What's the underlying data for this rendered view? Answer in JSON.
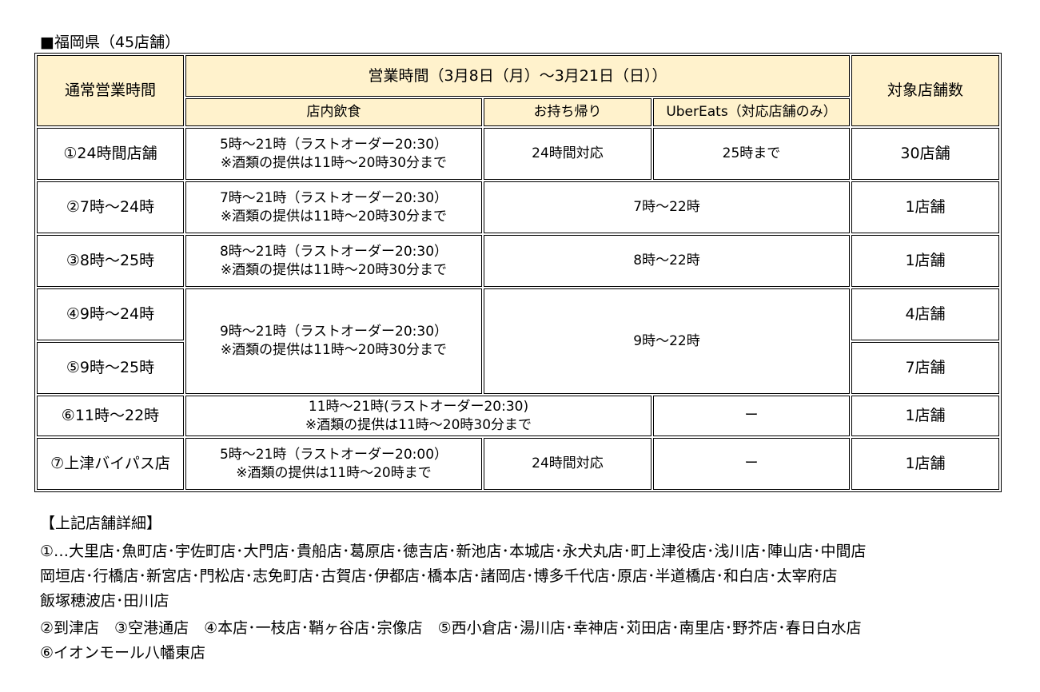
{
  "title": "■福岡県（45店舗）",
  "table": {
    "header": {
      "normal_hours": "通常営業時間",
      "period": "営業時間（3月8日（月）～3月21日（日））",
      "dine_in": "店内飲食",
      "takeout": "お持ち帰り",
      "ubereats": "UberEats（対応店舗のみ）",
      "store_count": "対象店舗数"
    },
    "rows": [
      {
        "normal": "①24時間店舗",
        "dine_in": [
          "5時～21時（ラストオーダー20:30）",
          "※酒類の提供は11時～20時30分まで"
        ],
        "takeout": "24時間対応",
        "ubereats": "25時まで",
        "count": "30店舗"
      },
      {
        "normal": "②7時～24時",
        "dine_in": [
          "7時～21時（ラストオーダー20:30）",
          "※酒類の提供は11時～20時30分まで"
        ],
        "takeout_ubereats": "7時～22時",
        "count": "1店舗"
      },
      {
        "normal": "③8時～25時",
        "dine_in": [
          "8時～21時（ラストオーダー20:30）",
          "※酒類の提供は11時～20時30分まで"
        ],
        "takeout_ubereats": "8時～22時",
        "count": "1店舗"
      },
      {
        "normal": "④9時～24時",
        "dine_in": [
          "9時～21時（ラストオーダー20:30）",
          "※酒類の提供は11時～20時30分まで"
        ],
        "takeout_ubereats": "9時～22時",
        "count": "4店舗"
      },
      {
        "normal": "⑤9時～25時",
        "count": "7店舗"
      },
      {
        "normal": "⑥11時～22時",
        "dine_in_takeout": [
          "11時～21時(ラストオーダー20:30)",
          "※酒類の提供は11時～20時30分まで"
        ],
        "ubereats": "ー",
        "count": "1店舗"
      },
      {
        "normal": "⑦上津バイパス店",
        "dine_in": [
          "5時～21時（ラストオーダー20:00）",
          "※酒類の提供は11時～20時まで"
        ],
        "takeout": "24時間対応",
        "ubereats": "ー",
        "count": "1店舗"
      }
    ]
  },
  "details": {
    "heading": "【上記店舗詳細】",
    "lines": [
      "①…大里店･魚町店･宇佐町店･大門店･貴船店･葛原店･徳吉店･新池店･本城店･永犬丸店･町上津役店･浅川店･陣山店･中間店",
      "岡垣店･行橋店･新宮店･門松店･志免町店･古賀店･伊都店･橋本店･諸岡店･博多千代店･原店･半道橋店･和白店･太宰府店",
      "飯塚穂波店･田川店",
      "②到津店　③空港通店　④本店･一枝店･鞘ヶ谷店･宗像店　⑤西小倉店･湯川店･幸神店･苅田店･南里店･野芥店･春日白水店",
      "⑥イオンモール八幡東店"
    ]
  }
}
